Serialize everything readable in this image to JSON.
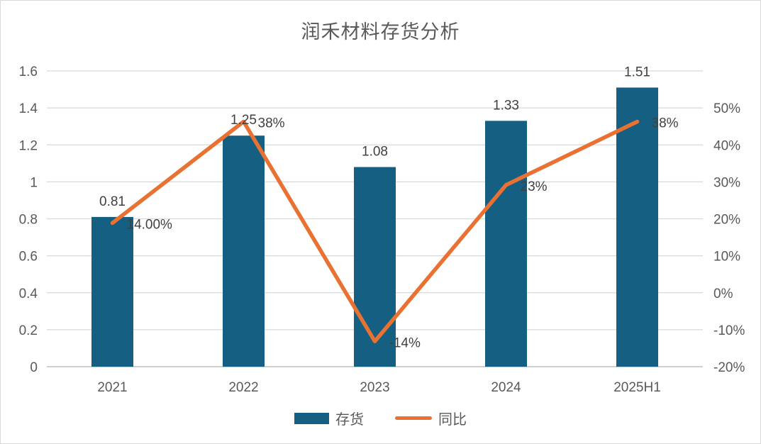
{
  "chart_data": {
    "type": "combo",
    "title": "润禾材料存货分析",
    "categories": [
      "2021",
      "2022",
      "2023",
      "2024",
      "2025H1"
    ],
    "series": [
      {
        "name": "存货",
        "type": "bar",
        "axis": "left",
        "color": "#156082",
        "values": [
          0.81,
          1.25,
          1.08,
          1.33,
          1.51
        ],
        "labels": [
          "0.81",
          "1.25",
          "1.08",
          "1.33",
          "1.51"
        ]
      },
      {
        "name": "同比",
        "type": "line",
        "axis": "right",
        "color": "#E97132",
        "values": [
          0.14,
          0.38,
          -0.14,
          0.23,
          0.38
        ],
        "labels": [
          "14.00%",
          "38%",
          "-14%",
          "23%",
          "38%"
        ]
      }
    ],
    "left_axis": {
      "min": 0,
      "max": 1.6,
      "step": 0.2,
      "ticks": [
        "0",
        "0.2",
        "0.4",
        "0.6",
        "0.8",
        "1",
        "1.2",
        "1.4",
        "1.6"
      ]
    },
    "right_axis": {
      "min": -0.2,
      "max": 0.5,
      "step": 0.1,
      "ticks": [
        "-20%",
        "-10%",
        "0%",
        "10%",
        "20%",
        "30%",
        "40%",
        "50%"
      ]
    },
    "grid": true,
    "legend_position": "bottom",
    "colors": {
      "grid": "#d9d9d9",
      "baseline": "#bfbfbf",
      "tick_text": "#595959",
      "data_label": "#404040",
      "title_text": "#595959"
    }
  }
}
